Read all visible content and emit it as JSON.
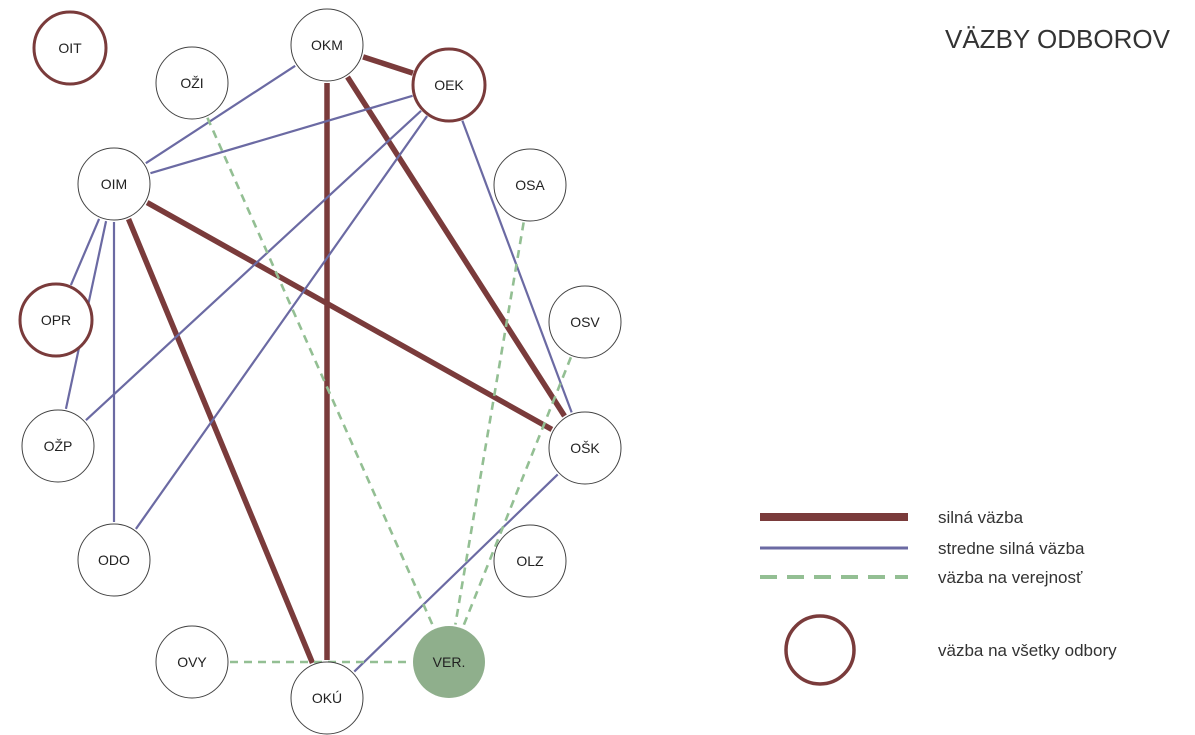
{
  "title": "VÄZBY ODBOROV",
  "colors": {
    "strong": "#7a3b3b",
    "medium": "#6b6aa3",
    "public": "#93bf93",
    "node_stroke": "#444444",
    "all_stroke": "#7a3b3b",
    "ver_fill": "#8faf8c"
  },
  "nodes": [
    {
      "id": "OIT",
      "label": "OIT",
      "style": "all"
    },
    {
      "id": "OKM",
      "label": "OKM",
      "style": "normal"
    },
    {
      "id": "OZI",
      "label": "OŽI",
      "style": "normal"
    },
    {
      "id": "OEK",
      "label": "OEK",
      "style": "all"
    },
    {
      "id": "OIM",
      "label": "OIM",
      "style": "normal"
    },
    {
      "id": "OSA",
      "label": "OSA",
      "style": "normal"
    },
    {
      "id": "OPR",
      "label": "OPR",
      "style": "all"
    },
    {
      "id": "OSV",
      "label": "OSV",
      "style": "normal"
    },
    {
      "id": "OZP",
      "label": "OŽP",
      "style": "normal"
    },
    {
      "id": "OSK",
      "label": "OŠK",
      "style": "normal"
    },
    {
      "id": "ODO",
      "label": "ODO",
      "style": "normal"
    },
    {
      "id": "OLZ",
      "label": "OLZ",
      "style": "normal"
    },
    {
      "id": "OVY",
      "label": "OVY",
      "style": "normal"
    },
    {
      "id": "VER",
      "label": "VER.",
      "style": "public"
    },
    {
      "id": "OKU",
      "label": "OKÚ",
      "style": "normal"
    }
  ],
  "edges": [
    {
      "from": "OKM",
      "to": "OEK",
      "type": "strong"
    },
    {
      "from": "OKM",
      "to": "OKU",
      "type": "strong"
    },
    {
      "from": "OKM",
      "to": "OSK",
      "type": "strong"
    },
    {
      "from": "OIM",
      "to": "OKU",
      "type": "strong"
    },
    {
      "from": "OIM",
      "to": "OSK",
      "type": "strong"
    },
    {
      "from": "OKM",
      "to": "OIM",
      "type": "medium"
    },
    {
      "from": "OEK",
      "to": "OIM",
      "type": "medium"
    },
    {
      "from": "OEK",
      "to": "OZP",
      "type": "medium"
    },
    {
      "from": "OEK",
      "to": "ODO",
      "type": "medium"
    },
    {
      "from": "OEK",
      "to": "OSK",
      "type": "medium"
    },
    {
      "from": "OIM",
      "to": "OPR",
      "type": "medium"
    },
    {
      "from": "OIM",
      "to": "OZP",
      "type": "medium"
    },
    {
      "from": "OIM",
      "to": "ODO",
      "type": "medium"
    },
    {
      "from": "OSK",
      "to": "OKU",
      "type": "medium"
    },
    {
      "from": "OZI",
      "to": "VER",
      "type": "public"
    },
    {
      "from": "OSA",
      "to": "VER",
      "type": "public"
    },
    {
      "from": "OSV",
      "to": "VER",
      "type": "public"
    },
    {
      "from": "OVY",
      "to": "VER",
      "type": "public"
    }
  ],
  "legend": {
    "strong": "silná väzba",
    "medium": "stredne silná väzba",
    "public": "väzba na verejnosť",
    "all": "väzba na všetky odbory"
  }
}
